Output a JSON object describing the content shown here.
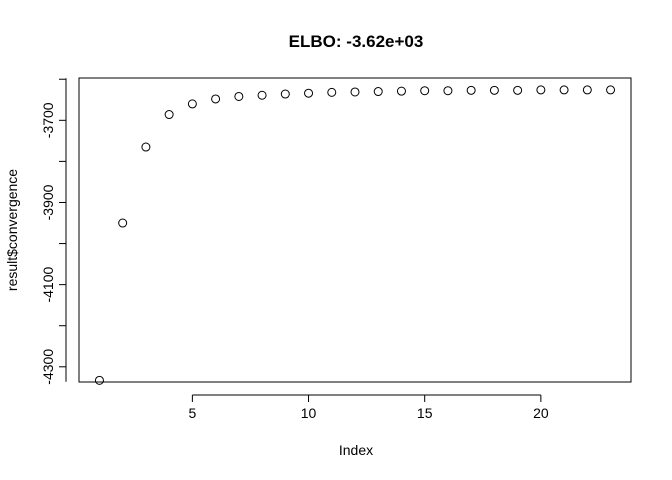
{
  "chart_data": {
    "type": "scatter",
    "title": "ELBO: -3.62e+03",
    "xlabel": "Index",
    "ylabel": "result$convergence",
    "xlim": [
      0.12,
      23.88
    ],
    "ylim": [
      -4337,
      -3597
    ],
    "x_ticks": [
      5,
      10,
      15,
      20
    ],
    "y_ticks": [
      -4300,
      -4100,
      -3900,
      -3700
    ],
    "grid": false,
    "legend": "none",
    "point_style": "open-circle",
    "x": [
      1,
      2,
      3,
      4,
      5,
      6,
      7,
      8,
      9,
      10,
      11,
      12,
      13,
      14,
      15,
      16,
      17,
      18,
      19,
      20,
      21,
      22,
      23
    ],
    "y": [
      -4333,
      -3950,
      -3765,
      -3686,
      -3660,
      -3648,
      -3642,
      -3639,
      -3636,
      -3634,
      -3632,
      -3631,
      -3630,
      -3629,
      -3628,
      -3628,
      -3627,
      -3627,
      -3627,
      -3626,
      -3626,
      -3626,
      -3626
    ]
  }
}
